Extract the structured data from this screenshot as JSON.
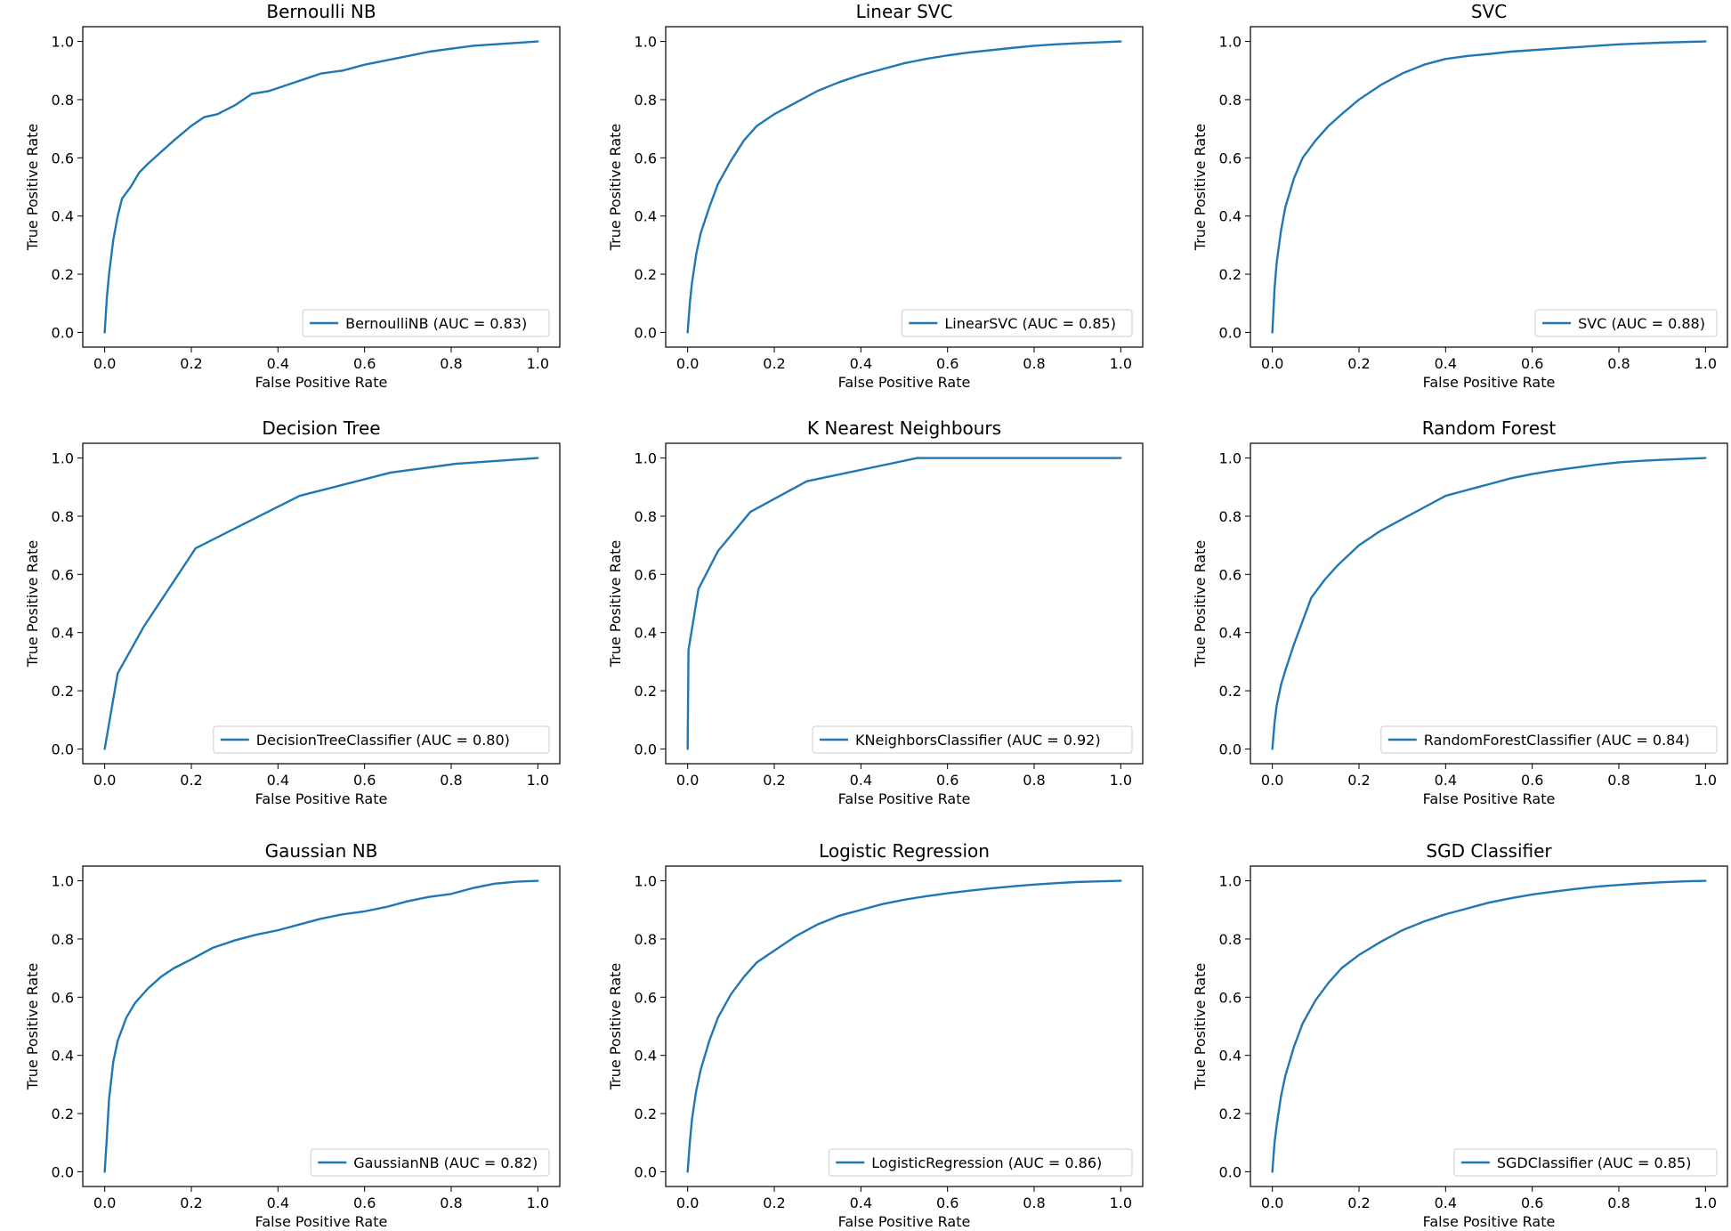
{
  "colors": {
    "line": "#1f77b4",
    "axis": "#000000",
    "legend_border": "#cccccc",
    "background": "#ffffff"
  },
  "chart_data": [
    {
      "type": "line",
      "title": "Bernoulli NB",
      "xlabel": "False Positive Rate",
      "ylabel": "True Positive Rate",
      "xlim": [
        0,
        1
      ],
      "ylim": [
        0,
        1
      ],
      "xticks": [
        "0.0",
        "0.2",
        "0.4",
        "0.6",
        "0.8",
        "1.0"
      ],
      "yticks": [
        "0.0",
        "0.2",
        "0.4",
        "0.6",
        "0.8",
        "1.0"
      ],
      "grid": false,
      "legend_position": "lower right",
      "series": [
        {
          "name": "BernoulliNB (AUC = 0.83)",
          "x": [
            0,
            0.005,
            0.01,
            0.02,
            0.03,
            0.04,
            0.05,
            0.06,
            0.08,
            0.1,
            0.13,
            0.16,
            0.2,
            0.23,
            0.26,
            0.3,
            0.34,
            0.38,
            0.42,
            0.46,
            0.5,
            0.55,
            0.6,
            0.65,
            0.7,
            0.75,
            0.8,
            0.85,
            0.9,
            0.95,
            1.0
          ],
          "y": [
            0,
            0.12,
            0.2,
            0.32,
            0.4,
            0.46,
            0.48,
            0.5,
            0.55,
            0.58,
            0.62,
            0.66,
            0.71,
            0.74,
            0.75,
            0.78,
            0.82,
            0.83,
            0.85,
            0.87,
            0.89,
            0.9,
            0.92,
            0.935,
            0.95,
            0.965,
            0.975,
            0.985,
            0.99,
            0.995,
            1.0
          ]
        }
      ]
    },
    {
      "type": "line",
      "title": "Linear SVC",
      "xlabel": "False Positive Rate",
      "ylabel": "True Positive Rate",
      "xlim": [
        0,
        1
      ],
      "ylim": [
        0,
        1
      ],
      "xticks": [
        "0.0",
        "0.2",
        "0.4",
        "0.6",
        "0.8",
        "1.0"
      ],
      "yticks": [
        "0.0",
        "0.2",
        "0.4",
        "0.6",
        "0.8",
        "1.0"
      ],
      "grid": false,
      "legend_position": "lower right",
      "series": [
        {
          "name": "LinearSVC (AUC = 0.85)",
          "x": [
            0,
            0.005,
            0.01,
            0.02,
            0.03,
            0.05,
            0.07,
            0.1,
            0.13,
            0.16,
            0.2,
            0.25,
            0.3,
            0.35,
            0.4,
            0.45,
            0.5,
            0.55,
            0.6,
            0.65,
            0.7,
            0.75,
            0.8,
            0.85,
            0.9,
            0.95,
            1.0
          ],
          "y": [
            0,
            0.1,
            0.17,
            0.27,
            0.34,
            0.43,
            0.51,
            0.59,
            0.66,
            0.71,
            0.75,
            0.79,
            0.83,
            0.86,
            0.885,
            0.905,
            0.925,
            0.94,
            0.952,
            0.962,
            0.97,
            0.978,
            0.985,
            0.99,
            0.994,
            0.997,
            1.0
          ]
        }
      ]
    },
    {
      "type": "line",
      "title": "SVC",
      "xlabel": "False Positive Rate",
      "ylabel": "True Positive Rate",
      "xlim": [
        0,
        1
      ],
      "ylim": [
        0,
        1
      ],
      "xticks": [
        "0.0",
        "0.2",
        "0.4",
        "0.6",
        "0.8",
        "1.0"
      ],
      "yticks": [
        "0.0",
        "0.2",
        "0.4",
        "0.6",
        "0.8",
        "1.0"
      ],
      "grid": false,
      "legend_position": "lower right",
      "series": [
        {
          "name": "SVC (AUC = 0.88)",
          "x": [
            0,
            0.005,
            0.01,
            0.02,
            0.03,
            0.05,
            0.07,
            0.1,
            0.13,
            0.16,
            0.2,
            0.25,
            0.3,
            0.35,
            0.4,
            0.45,
            0.5,
            0.55,
            0.6,
            0.65,
            0.7,
            0.75,
            0.8,
            0.85,
            0.9,
            0.95,
            1.0
          ],
          "y": [
            0,
            0.15,
            0.24,
            0.35,
            0.43,
            0.53,
            0.6,
            0.66,
            0.71,
            0.75,
            0.8,
            0.85,
            0.89,
            0.92,
            0.94,
            0.95,
            0.957,
            0.965,
            0.97,
            0.975,
            0.98,
            0.985,
            0.99,
            0.993,
            0.996,
            0.998,
            1.0
          ]
        }
      ]
    },
    {
      "type": "line",
      "title": "Decision Tree",
      "xlabel": "False Positive Rate",
      "ylabel": "True Positive Rate",
      "xlim": [
        0,
        1
      ],
      "ylim": [
        0,
        1
      ],
      "xticks": [
        "0.0",
        "0.2",
        "0.4",
        "0.6",
        "0.8",
        "1.0"
      ],
      "yticks": [
        "0.0",
        "0.2",
        "0.4",
        "0.6",
        "0.8",
        "1.0"
      ],
      "grid": false,
      "legend_position": "lower right",
      "series": [
        {
          "name": "DecisionTreeClassifier (AUC = 0.80)",
          "x": [
            0,
            0.03,
            0.09,
            0.21,
            0.45,
            0.66,
            0.81,
            1.0
          ],
          "y": [
            0,
            0.26,
            0.42,
            0.69,
            0.87,
            0.95,
            0.98,
            1.0
          ]
        }
      ]
    },
    {
      "type": "line",
      "title": "K Nearest Neighbours",
      "xlabel": "False Positive Rate",
      "ylabel": "True Positive Rate",
      "xlim": [
        0,
        1
      ],
      "ylim": [
        0,
        1
      ],
      "xticks": [
        "0.0",
        "0.2",
        "0.4",
        "0.6",
        "0.8",
        "1.0"
      ],
      "yticks": [
        "0.0",
        "0.2",
        "0.4",
        "0.6",
        "0.8",
        "1.0"
      ],
      "grid": false,
      "legend_position": "lower right",
      "series": [
        {
          "name": "KNeighborsClassifier (AUC = 0.92)",
          "x": [
            0,
            0.002,
            0.025,
            0.07,
            0.145,
            0.275,
            0.53,
            1.0
          ],
          "y": [
            0,
            0.34,
            0.55,
            0.68,
            0.815,
            0.92,
            1.0,
            1.0
          ]
        }
      ]
    },
    {
      "type": "line",
      "title": "Random Forest",
      "xlabel": "False Positive Rate",
      "ylabel": "True Positive Rate",
      "xlim": [
        0,
        1
      ],
      "ylim": [
        0,
        1
      ],
      "xticks": [
        "0.0",
        "0.2",
        "0.4",
        "0.6",
        "0.8",
        "1.0"
      ],
      "yticks": [
        "0.0",
        "0.2",
        "0.4",
        "0.6",
        "0.8",
        "1.0"
      ],
      "grid": false,
      "legend_position": "lower right",
      "series": [
        {
          "name": "RandomForestClassifier (AUC = 0.84)",
          "x": [
            0,
            0.005,
            0.01,
            0.02,
            0.03,
            0.05,
            0.07,
            0.09,
            0.12,
            0.15,
            0.2,
            0.25,
            0.3,
            0.35,
            0.4,
            0.45,
            0.5,
            0.55,
            0.6,
            0.65,
            0.7,
            0.75,
            0.8,
            0.85,
            0.9,
            0.95,
            1.0
          ],
          "y": [
            0,
            0.09,
            0.15,
            0.22,
            0.27,
            0.36,
            0.44,
            0.52,
            0.58,
            0.63,
            0.7,
            0.75,
            0.79,
            0.83,
            0.87,
            0.89,
            0.91,
            0.93,
            0.945,
            0.957,
            0.967,
            0.977,
            0.985,
            0.99,
            0.994,
            0.997,
            1.0
          ]
        }
      ]
    },
    {
      "type": "line",
      "title": "Gaussian NB",
      "xlabel": "False Positive Rate",
      "ylabel": "True Positive Rate",
      "xlim": [
        0,
        1
      ],
      "ylim": [
        0,
        1
      ],
      "xticks": [
        "0.0",
        "0.2",
        "0.4",
        "0.6",
        "0.8",
        "1.0"
      ],
      "yticks": [
        "0.0",
        "0.2",
        "0.4",
        "0.6",
        "0.8",
        "1.0"
      ],
      "grid": false,
      "legend_position": "lower right",
      "series": [
        {
          "name": "GaussianNB (AUC = 0.82)",
          "x": [
            0,
            0.005,
            0.01,
            0.02,
            0.03,
            0.05,
            0.07,
            0.1,
            0.13,
            0.16,
            0.2,
            0.25,
            0.3,
            0.35,
            0.4,
            0.45,
            0.5,
            0.55,
            0.6,
            0.65,
            0.7,
            0.75,
            0.8,
            0.85,
            0.9,
            0.95,
            1.0
          ],
          "y": [
            0,
            0.12,
            0.25,
            0.38,
            0.45,
            0.53,
            0.58,
            0.63,
            0.67,
            0.7,
            0.73,
            0.77,
            0.795,
            0.815,
            0.83,
            0.85,
            0.87,
            0.885,
            0.895,
            0.91,
            0.93,
            0.945,
            0.955,
            0.975,
            0.99,
            0.997,
            1.0
          ]
        }
      ]
    },
    {
      "type": "line",
      "title": "Logistic Regression",
      "xlabel": "False Positive Rate",
      "ylabel": "True Positive Rate",
      "xlim": [
        0,
        1
      ],
      "ylim": [
        0,
        1
      ],
      "xticks": [
        "0.0",
        "0.2",
        "0.4",
        "0.6",
        "0.8",
        "1.0"
      ],
      "yticks": [
        "0.0",
        "0.2",
        "0.4",
        "0.6",
        "0.8",
        "1.0"
      ],
      "grid": false,
      "legend_position": "lower right",
      "series": [
        {
          "name": "LogisticRegression (AUC = 0.86)",
          "x": [
            0,
            0.005,
            0.01,
            0.02,
            0.03,
            0.05,
            0.07,
            0.1,
            0.13,
            0.16,
            0.2,
            0.25,
            0.3,
            0.35,
            0.4,
            0.45,
            0.5,
            0.55,
            0.6,
            0.65,
            0.7,
            0.75,
            0.8,
            0.85,
            0.9,
            0.95,
            1.0
          ],
          "y": [
            0,
            0.1,
            0.18,
            0.28,
            0.35,
            0.45,
            0.53,
            0.61,
            0.67,
            0.72,
            0.76,
            0.81,
            0.85,
            0.88,
            0.9,
            0.92,
            0.935,
            0.947,
            0.957,
            0.966,
            0.974,
            0.981,
            0.987,
            0.992,
            0.996,
            0.998,
            1.0
          ]
        }
      ]
    },
    {
      "type": "line",
      "title": "SGD Classifier",
      "xlabel": "False Positive Rate",
      "ylabel": "True Positive Rate",
      "xlim": [
        0,
        1
      ],
      "ylim": [
        0,
        1
      ],
      "xticks": [
        "0.0",
        "0.2",
        "0.4",
        "0.6",
        "0.8",
        "1.0"
      ],
      "yticks": [
        "0.0",
        "0.2",
        "0.4",
        "0.6",
        "0.8",
        "1.0"
      ],
      "grid": false,
      "legend_position": "lower right",
      "series": [
        {
          "name": "SGDClassifier (AUC = 0.85)",
          "x": [
            0,
            0.005,
            0.01,
            0.02,
            0.03,
            0.05,
            0.07,
            0.1,
            0.13,
            0.16,
            0.2,
            0.25,
            0.3,
            0.35,
            0.4,
            0.45,
            0.5,
            0.55,
            0.6,
            0.65,
            0.7,
            0.75,
            0.8,
            0.85,
            0.9,
            0.95,
            1.0
          ],
          "y": [
            0,
            0.1,
            0.16,
            0.26,
            0.33,
            0.43,
            0.51,
            0.59,
            0.65,
            0.7,
            0.745,
            0.79,
            0.83,
            0.86,
            0.885,
            0.905,
            0.925,
            0.94,
            0.953,
            0.963,
            0.972,
            0.98,
            0.986,
            0.991,
            0.995,
            0.998,
            1.0
          ]
        }
      ]
    }
  ]
}
